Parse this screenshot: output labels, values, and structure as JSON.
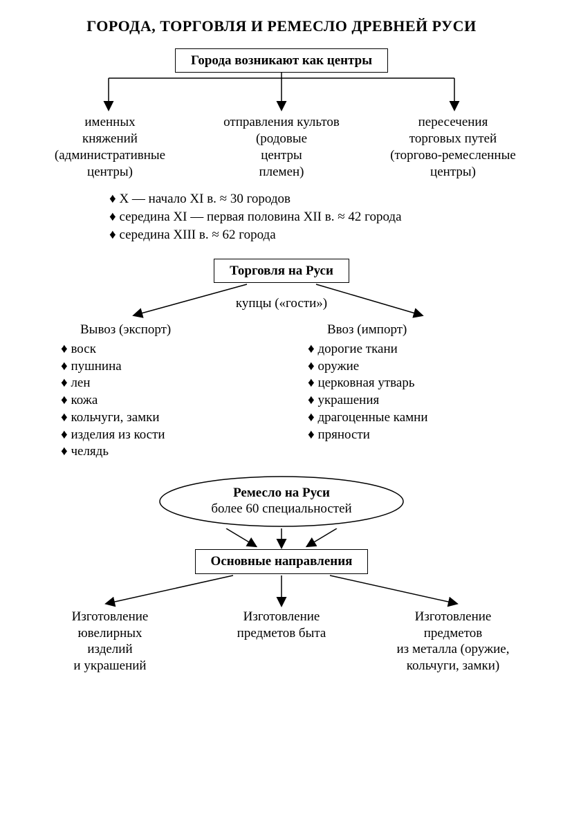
{
  "colors": {
    "bg": "#ffffff",
    "fg": "#000000",
    "stroke": "#000000"
  },
  "title": "ГОРОДА, ТОРГОВЛЯ И РЕМЕСЛО ДРЕВНЕЙ РУСИ",
  "cities": {
    "box": "Города возникают как центры",
    "branches": [
      "именных\nкняжений\n(административные\nцентры)",
      "отправления культов\n(родовые\nцентры\nплемен)",
      "пересечения\nторговых путей\n(торгово-ремесленные\nцентры)"
    ]
  },
  "stats": [
    "X — начало XI в. ≈  30 городов",
    "середина XI — первая половина XII в. ≈  42 города",
    "середина XIII в. ≈  62 города"
  ],
  "trade": {
    "box": "Торговля на Руси",
    "subtitle": "купцы («гости»)",
    "export": {
      "title": "Вывоз (экспорт)",
      "items": [
        "воск",
        "пушнина",
        "лен",
        "кожа",
        "кольчуги, замки",
        "изделия из кости",
        "челядь"
      ]
    },
    "import": {
      "title": "Ввоз (импорт)",
      "items": [
        "дорогие ткани",
        "оружие",
        "церковная утварь",
        "украшения",
        "драгоценные камни",
        "пряности"
      ]
    }
  },
  "craft": {
    "ellipse_title": "Ремесло на Руси",
    "ellipse_sub": "более 60 специальностей",
    "directions_box": "Основные направления",
    "branches": [
      "Изготовление\nювелирных\nизделий\nи украшений",
      "Изготовление\nпредметов быта",
      "Изготовление\nпредметов\nиз металла (оружие,\nкольчуги, замки)"
    ]
  },
  "bullet": "♦",
  "layout": {
    "stroke_width": 1.5,
    "arrow_size": 9
  }
}
